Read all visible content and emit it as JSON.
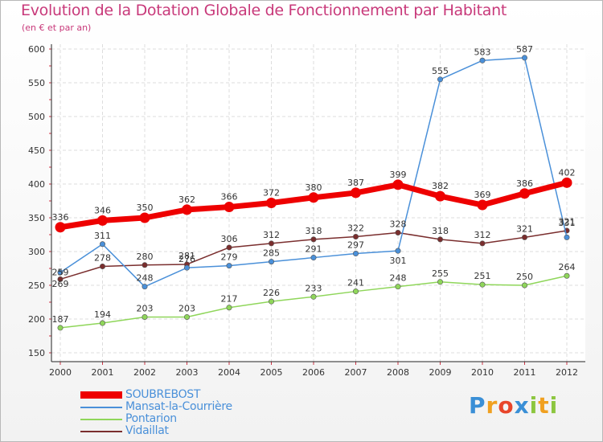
{
  "header": {
    "title": "Evolution de la Dotation Globale de Fonctionnement par Habitant",
    "subtitle": "(en € et par an)"
  },
  "logo": {
    "letters": [
      "P",
      "r",
      "o",
      "x",
      "i",
      "t",
      "i"
    ],
    "colors": [
      "#3a8fd6",
      "#f0a020",
      "#e8452a",
      "#3a8fd6",
      "#8cc63f",
      "#f0a020",
      "#8cc63f"
    ]
  },
  "chart_data": {
    "type": "line",
    "title": "Evolution de la Dotation Globale de Fonctionnement par Habitant",
    "subtitle": "(en € et par an)",
    "xlabel": "",
    "ylabel": "",
    "x": [
      "2000",
      "2001",
      "2002",
      "2003",
      "2004",
      "2005",
      "2006",
      "2007",
      "2008",
      "2009",
      "2010",
      "2011",
      "2012"
    ],
    "ylim": [
      150,
      600
    ],
    "yticks": [
      150,
      200,
      250,
      300,
      350,
      400,
      450,
      500,
      550,
      600
    ],
    "grid": true,
    "legend_position": "bottom-left",
    "series": [
      {
        "name": "SOUBREBOST",
        "color": "#ee0000",
        "values": [
          336,
          346,
          350,
          362,
          366,
          372,
          380,
          387,
          399,
          382,
          369,
          386,
          402
        ]
      },
      {
        "name": "Mansat-la-Courrière",
        "color": "#4a90d9",
        "values": [
          269,
          311,
          248,
          276,
          279,
          285,
          291,
          297,
          301,
          555,
          583,
          587,
          321
        ]
      },
      {
        "name": "Pontarion",
        "color": "#8fd65a",
        "values": [
          187,
          194,
          203,
          203,
          217,
          226,
          233,
          241,
          248,
          255,
          251,
          250,
          264
        ]
      },
      {
        "name": "Vidaillat",
        "color": "#7a2e2e",
        "values": [
          259,
          278,
          280,
          281,
          306,
          312,
          318,
          322,
          328,
          318,
          312,
          321,
          331
        ]
      }
    ]
  }
}
